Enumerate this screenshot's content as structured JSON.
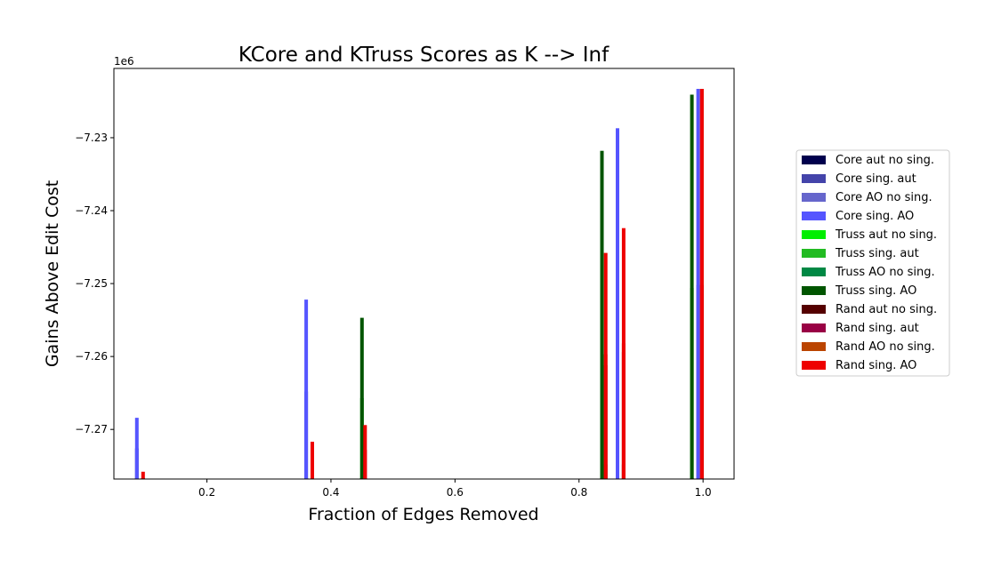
{
  "chart_data": {
    "type": "bar",
    "title": "KCore and KTruss Scores as K --> Inf",
    "xlabel": "Fraction of Edges Removed",
    "ylabel": "Gains Above Edit Cost",
    "y_offset_label": "1e6",
    "xlim": [
      0.05,
      1.05
    ],
    "ylim": [
      -7.2768,
      -7.2205
    ],
    "xticks": [
      0.2,
      0.4,
      0.6,
      0.8,
      1.0
    ],
    "xtick_labels": [
      "0.2",
      "0.4",
      "0.6",
      "0.8",
      "1.0"
    ],
    "yticks": [
      -7.27,
      -7.26,
      -7.25,
      -7.24,
      -7.23
    ],
    "ytick_labels": [
      "−7.27",
      "−7.26",
      "−7.25",
      "−7.24",
      "−7.23"
    ],
    "legend_position": "right (outside plot)",
    "series": [
      {
        "name": "Core aut no sing.",
        "color": "#00004d",
        "points": [
          [
            0.087,
            -7.2768
          ],
          [
            0.36,
            -7.2768
          ],
          [
            0.862,
            -7.2768
          ],
          [
            0.992,
            -7.2768
          ]
        ]
      },
      {
        "name": "Core sing. aut",
        "color": "#4444aa",
        "points": [
          [
            0.087,
            -7.2726
          ],
          [
            0.36,
            -7.2648
          ],
          [
            0.862,
            -7.2531
          ],
          [
            0.992,
            -7.2502
          ]
        ]
      },
      {
        "name": "Core AO no sing.",
        "color": "#6666cc",
        "points": [
          [
            0.087,
            -7.2768
          ],
          [
            0.36,
            -7.2768
          ],
          [
            0.862,
            -7.2768
          ],
          [
            0.992,
            -7.2768
          ]
        ]
      },
      {
        "name": "Core sing. AO",
        "color": "#5555ff",
        "points": [
          [
            0.087,
            -7.2684
          ],
          [
            0.36,
            -7.2522
          ],
          [
            0.862,
            -7.2287
          ],
          [
            0.992,
            -7.2233
          ]
        ]
      },
      {
        "name": "Truss aut no sing.",
        "color": "#00ee00",
        "points": [
          [
            0.45,
            -7.2768
          ],
          [
            0.837,
            -7.2768
          ],
          [
            0.982,
            -7.2768
          ]
        ]
      },
      {
        "name": "Truss sing. aut",
        "color": "#22bb22",
        "points": [
          [
            0.45,
            -7.2657
          ],
          [
            0.837,
            -7.2544
          ],
          [
            0.982,
            -7.2506
          ]
        ]
      },
      {
        "name": "Truss AO no sing.",
        "color": "#008844",
        "points": [
          [
            0.45,
            -7.2768
          ],
          [
            0.837,
            -7.2768
          ],
          [
            0.982,
            -7.2768
          ]
        ]
      },
      {
        "name": "Truss sing. AO",
        "color": "#005500",
        "points": [
          [
            0.45,
            -7.2547
          ],
          [
            0.837,
            -7.2318
          ],
          [
            0.982,
            -7.2241
          ]
        ]
      },
      {
        "name": "Rand aut no sing.",
        "color": "#550000",
        "points": [
          [
            0.097,
            -7.2768
          ],
          [
            0.37,
            -7.2768
          ],
          [
            0.455,
            -7.2768
          ],
          [
            0.843,
            -7.2748
          ],
          [
            0.872,
            -7.2748
          ],
          [
            0.998,
            -7.2768
          ]
        ]
      },
      {
        "name": "Rand sing. aut",
        "color": "#990044",
        "points": [
          [
            0.097,
            -7.2768
          ],
          [
            0.37,
            -7.274
          ],
          [
            0.455,
            -7.2728
          ],
          [
            0.843,
            -7.2612
          ],
          [
            0.872,
            -7.2594
          ],
          [
            0.998,
            -7.2502
          ]
        ]
      },
      {
        "name": "Rand AO no sing.",
        "color": "#bb4400",
        "points": [
          [
            0.097,
            -7.2768
          ],
          [
            0.37,
            -7.2768
          ],
          [
            0.455,
            -7.2768
          ],
          [
            0.843,
            -7.2597
          ],
          [
            0.872,
            -7.2582
          ],
          [
            0.998,
            -7.2233
          ]
        ]
      },
      {
        "name": "Rand sing. AO",
        "color": "#ee0000",
        "points": [
          [
            0.097,
            -7.2758
          ],
          [
            0.37,
            -7.2717
          ],
          [
            0.455,
            -7.2694
          ],
          [
            0.843,
            -7.2458
          ],
          [
            0.872,
            -7.2424
          ],
          [
            0.998,
            -7.2233
          ]
        ]
      }
    ]
  }
}
